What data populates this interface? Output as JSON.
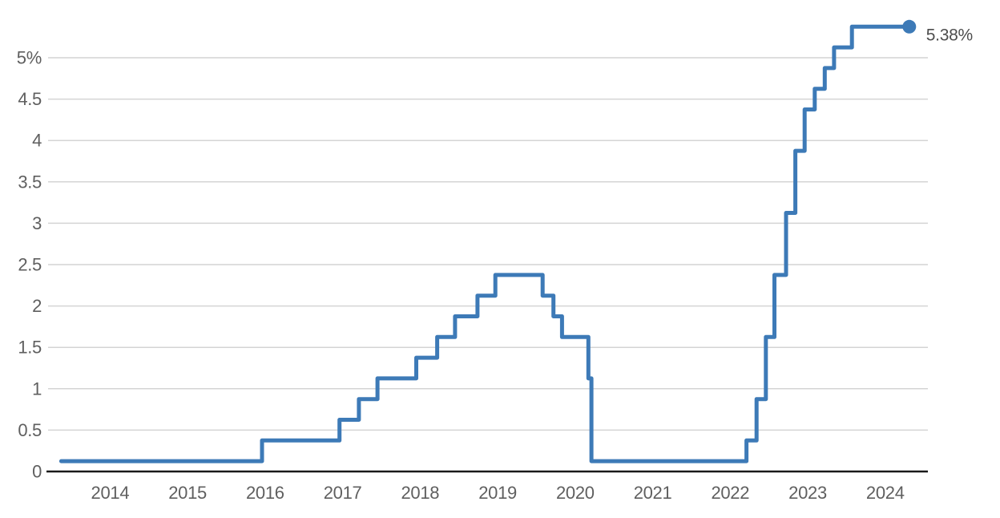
{
  "chart_data": {
    "type": "line",
    "subtype": "step-after",
    "title": "",
    "series_name": "policy-rate-step-series",
    "unit": "%",
    "points": [
      {
        "x": 2013.37,
        "y": 0.125
      },
      {
        "x": 2015.96,
        "y": 0.375
      },
      {
        "x": 2016.96,
        "y": 0.625
      },
      {
        "x": 2017.21,
        "y": 0.875
      },
      {
        "x": 2017.45,
        "y": 1.125
      },
      {
        "x": 2017.95,
        "y": 1.375
      },
      {
        "x": 2018.22,
        "y": 1.625
      },
      {
        "x": 2018.45,
        "y": 1.875
      },
      {
        "x": 2018.74,
        "y": 2.125
      },
      {
        "x": 2018.97,
        "y": 2.375
      },
      {
        "x": 2019.58,
        "y": 2.125
      },
      {
        "x": 2019.72,
        "y": 1.875
      },
      {
        "x": 2019.83,
        "y": 1.625
      },
      {
        "x": 2020.17,
        "y": 1.125
      },
      {
        "x": 2020.21,
        "y": 0.125
      },
      {
        "x": 2022.21,
        "y": 0.375
      },
      {
        "x": 2022.34,
        "y": 0.875
      },
      {
        "x": 2022.46,
        "y": 1.625
      },
      {
        "x": 2022.57,
        "y": 2.375
      },
      {
        "x": 2022.72,
        "y": 3.125
      },
      {
        "x": 2022.84,
        "y": 3.875
      },
      {
        "x": 2022.96,
        "y": 4.375
      },
      {
        "x": 2023.09,
        "y": 4.625
      },
      {
        "x": 2023.22,
        "y": 4.875
      },
      {
        "x": 2023.34,
        "y": 5.125
      },
      {
        "x": 2023.57,
        "y": 5.375
      }
    ],
    "end_dot": {
      "x": 2024.31,
      "y": 5.375,
      "label": "5.38%"
    },
    "x_ticks": [
      {
        "v": 2014,
        "label": "2014"
      },
      {
        "v": 2015,
        "label": "2015"
      },
      {
        "v": 2016,
        "label": "2016"
      },
      {
        "v": 2017,
        "label": "2017"
      },
      {
        "v": 2018,
        "label": "2018"
      },
      {
        "v": 2019,
        "label": "2019"
      },
      {
        "v": 2020,
        "label": "2020"
      },
      {
        "v": 2021,
        "label": "2021"
      },
      {
        "v": 2022,
        "label": "2022"
      },
      {
        "v": 2023,
        "label": "2023"
      },
      {
        "v": 2024,
        "label": "2024"
      }
    ],
    "y_ticks": [
      {
        "v": 0,
        "label": "0"
      },
      {
        "v": 0.5,
        "label": "0.5"
      },
      {
        "v": 1,
        "label": "1"
      },
      {
        "v": 1.5,
        "label": "1.5"
      },
      {
        "v": 2,
        "label": "2"
      },
      {
        "v": 2.5,
        "label": "2.5"
      },
      {
        "v": 3,
        "label": "3"
      },
      {
        "v": 3.5,
        "label": "3.5"
      },
      {
        "v": 4,
        "label": "4"
      },
      {
        "v": 4.5,
        "label": "4.5"
      },
      {
        "v": 5,
        "label": "5%"
      }
    ],
    "x_domain": [
      2013.2,
      2024.55
    ],
    "y_domain": [
      0,
      5
    ],
    "grid": "horizontal",
    "legend": "none",
    "colors": {
      "line": "#3d7ab7",
      "dot": "#3d7ab7",
      "grid": "#d4d4d4",
      "axis": "#1a1a1a",
      "tick_text": "#5f5f5f",
      "end_label_text": "#4d4d4d",
      "background": "#ffffff"
    }
  }
}
